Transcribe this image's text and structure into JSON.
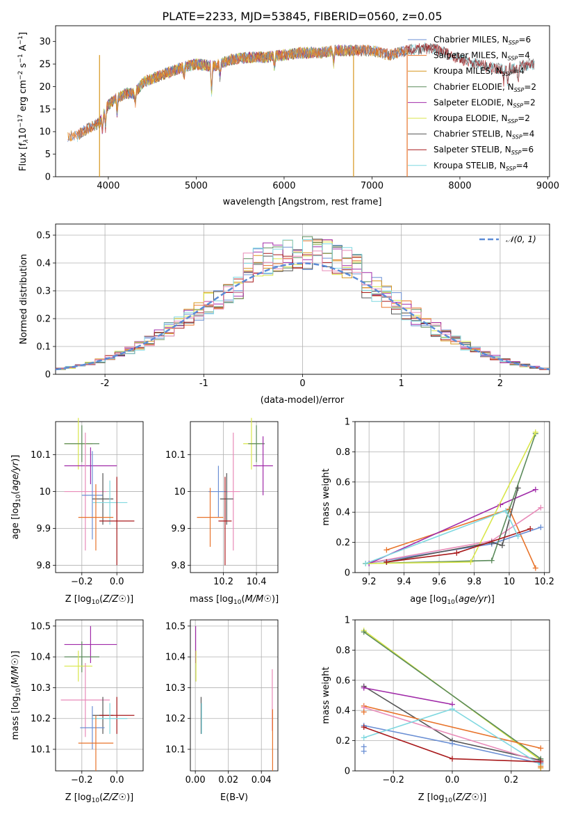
{
  "title": "PLATE=2233, MJD=53845, FIBERID=0560, z=0.05",
  "colors": {
    "Chabrier MILES": "#6a8fd4",
    "Salpeter MILES": "#e8732a",
    "Kroupa MILES": "#d7961c",
    "Chabrier ELODIE": "#5a8a5a",
    "Salpeter ELODIE": "#a02aa8",
    "Kroupa ELODIE": "#d9e64a",
    "Chabrier STELIB": "#555555",
    "Salpeter STELIB": "#a8191b",
    "Kroupa STELIB": "#7fd8e0",
    "extra_pink": "#e88ab8",
    "normal_curve": "#5b8bd6"
  },
  "chart_data": [
    {
      "id": "spectrum",
      "type": "line",
      "xlabel": "wavelength [Angstrom, rest frame]",
      "ylabel_parts": [
        "Flux [f",
        "λ",
        "10",
        "−17",
        " erg cm",
        "−2",
        " s",
        "−1",
        " A",
        "−1",
        "]"
      ],
      "xlim": [
        3400,
        9020
      ],
      "ylim": [
        0,
        33.5
      ],
      "xticks": [
        4000,
        5000,
        6000,
        7000,
        8000,
        9000
      ],
      "yticks": [
        0,
        5,
        10,
        15,
        20,
        25,
        30
      ],
      "grid": false,
      "legend_position": "top-right",
      "legend": [
        {
          "name": "Chabrier MILES",
          "n": "6"
        },
        {
          "name": "Salpeter MILES",
          "n": "4"
        },
        {
          "name": "Kroupa MILES",
          "n": "4"
        },
        {
          "name": "Chabrier ELODIE",
          "n": "2"
        },
        {
          "name": "Salpeter ELODIE",
          "n": "2"
        },
        {
          "name": "Kroupa ELODIE",
          "n": "2"
        },
        {
          "name": "Chabrier STELIB",
          "n": "4"
        },
        {
          "name": "Salpeter STELIB",
          "n": "6"
        },
        {
          "name": "Kroupa STELIB",
          "n": "4"
        }
      ],
      "continuum": [
        [
          3650,
          9
        ],
        [
          3700,
          10
        ],
        [
          3800,
          11
        ],
        [
          3900,
          12
        ],
        [
          3950,
          14
        ],
        [
          4000,
          16
        ],
        [
          4100,
          17.5
        ],
        [
          4200,
          18.5
        ],
        [
          4300,
          18.5
        ],
        [
          4400,
          21
        ],
        [
          4600,
          22.5
        ],
        [
          4800,
          24
        ],
        [
          5000,
          25
        ],
        [
          5200,
          24.5
        ],
        [
          5400,
          26
        ],
        [
          5600,
          26.5
        ],
        [
          5800,
          26.5
        ],
        [
          6000,
          27
        ],
        [
          6200,
          27.5
        ],
        [
          6400,
          27.5
        ],
        [
          6600,
          28
        ],
        [
          6800,
          28
        ],
        [
          7000,
          28
        ],
        [
          7200,
          27
        ],
        [
          7400,
          28
        ],
        [
          7600,
          28.5
        ],
        [
          7800,
          28
        ],
        [
          8000,
          26
        ],
        [
          8200,
          25
        ],
        [
          8400,
          24
        ],
        [
          8600,
          24
        ],
        [
          8800,
          25
        ]
      ],
      "dips": [
        [
          4305,
          16
        ],
        [
          5175,
          18
        ],
        [
          3933,
          10
        ],
        [
          3968,
          11
        ],
        [
          4100,
          14
        ],
        [
          4861,
          22
        ],
        [
          5270,
          22
        ],
        [
          5890,
          24
        ],
        [
          6563,
          25
        ],
        [
          8498,
          21
        ],
        [
          8542,
          20
        ],
        [
          8662,
          21
        ]
      ],
      "spikes": [
        {
          "x": 3900,
          "series": "Kroupa MILES"
        },
        {
          "x": 6790,
          "series": "Kroupa MILES"
        },
        {
          "x": 7400,
          "series": "Salpeter MILES"
        }
      ],
      "ranges": {
        "MILES": [
          3540,
          7410
        ],
        "ELODIE": [
          3900,
          6800
        ],
        "STELIB": [
          3650,
          8850
        ]
      }
    },
    {
      "id": "residuals",
      "type": "histogram",
      "xlabel": "(data-model)/error",
      "ylabel": "Normed distribution",
      "xlim": [
        -2.5,
        2.5
      ],
      "ylim": [
        0,
        0.54
      ],
      "xticks": [
        -2,
        -1,
        0,
        1,
        2
      ],
      "yticks": [
        0,
        0.1,
        0.2,
        0.3,
        0.4,
        0.5
      ],
      "grid": true,
      "bin_width": 0.1,
      "legend_position": "top-right",
      "legend_label": "𝒩(0, 1)",
      "series_colors": [
        "Chabrier MILES",
        "Salpeter MILES",
        "Kroupa MILES",
        "Chabrier ELODIE",
        "Salpeter ELODIE",
        "Kroupa ELODIE",
        "Chabrier STELIB",
        "Salpeter STELIB",
        "Kroupa STELIB",
        "extra_pink"
      ]
    },
    {
      "id": "z-age",
      "type": "errorbar",
      "xlabel": "Z [log10(Z/Z☉)]",
      "ylabel": "age [log10(age/yr)]",
      "xlim": [
        -0.35,
        0.15
      ],
      "ylim": [
        9.78,
        10.19
      ],
      "xticks": [
        -0.2,
        0.0
      ],
      "xtick_labels": [
        "−0.2",
        "0.0"
      ],
      "yticks": [
        9.8,
        9.9,
        10.0,
        10.1
      ],
      "grid": true,
      "points": [
        {
          "c": "Kroupa ELODIE",
          "x": -0.22,
          "xe": 0.08,
          "y": 10.13,
          "ye": 0.07
        },
        {
          "c": "Chabrier ELODIE",
          "x": -0.2,
          "xe": 0.1,
          "y": 10.13,
          "ye": 0.05
        },
        {
          "c": "Salpeter ELODIE",
          "x": -0.15,
          "xe": 0.15,
          "y": 10.07,
          "ye": 0.05
        },
        {
          "c": "extra_pink",
          "x": -0.18,
          "xe": 0.12,
          "y": 10.0,
          "ye": 0.16
        },
        {
          "c": "Chabrier MILES",
          "x": -0.14,
          "xe": 0.06,
          "y": 9.99,
          "ye": 0.12
        },
        {
          "c": "Chabrier STELIB",
          "x": -0.08,
          "xe": 0.06,
          "y": 9.98,
          "ye": 0.07
        },
        {
          "c": "Kroupa STELIB",
          "x": -0.04,
          "xe": 0.1,
          "y": 9.97,
          "ye": 0.06
        },
        {
          "c": "Salpeter MILES",
          "x": -0.12,
          "xe": 0.1,
          "y": 9.93,
          "ye": 0.09
        },
        {
          "c": "Salpeter STELIB",
          "x": 0.0,
          "xe": 0.1,
          "y": 9.92,
          "ye": 0.12
        }
      ]
    },
    {
      "id": "mass-age",
      "type": "errorbar",
      "xlabel": "mass [log10(M/M☉)]",
      "xlim": [
        10.0,
        10.53
      ],
      "ylim": [
        9.78,
        10.19
      ],
      "xticks": [
        10.2,
        10.4
      ],
      "yticks": [
        9.8,
        9.9,
        10.0,
        10.1
      ],
      "grid": true,
      "points": [
        {
          "c": "Kroupa ELODIE",
          "x": 10.37,
          "xe": 0.05,
          "y": 10.13,
          "ye": 0.07
        },
        {
          "c": "Chabrier ELODIE",
          "x": 10.4,
          "xe": 0.05,
          "y": 10.13,
          "ye": 0.05
        },
        {
          "c": "Salpeter ELODIE",
          "x": 10.44,
          "xe": 0.06,
          "y": 10.07,
          "ye": 0.08
        },
        {
          "c": "Chabrier MILES",
          "x": 10.17,
          "xe": 0.06,
          "y": 10.0,
          "ye": 0.07
        },
        {
          "c": "extra_pink",
          "x": 10.26,
          "xe": 0.04,
          "y": 10.0,
          "ye": 0.16
        },
        {
          "c": "Chabrier STELIB",
          "x": 10.22,
          "xe": 0.04,
          "y": 9.98,
          "ye": 0.07
        },
        {
          "c": "Salpeter MILES",
          "x": 10.12,
          "xe": 0.08,
          "y": 9.93,
          "ye": 0.08
        },
        {
          "c": "Salpeter STELIB",
          "x": 10.21,
          "xe": 0.04,
          "y": 9.92,
          "ye": 0.12
        }
      ]
    },
    {
      "id": "age-weight",
      "type": "line",
      "xlabel": "age [log10(age/yr)]",
      "ylabel": "mass weight",
      "xlim": [
        9.12,
        10.23
      ],
      "ylim": [
        0,
        1.0
      ],
      "xticks": [
        9.2,
        9.4,
        9.6,
        9.8,
        10.0,
        10.2
      ],
      "yticks": [
        0,
        0.2,
        0.4,
        0.6,
        0.8,
        1.0
      ],
      "grid": true,
      "lines": [
        {
          "c": "Salpeter MILES",
          "pts": [
            [
              9.3,
              0.15
            ],
            [
              10.0,
              0.42
            ],
            [
              10.15,
              0.03
            ]
          ]
        },
        {
          "c": "Chabrier MILES",
          "pts": [
            [
              9.18,
              0.06
            ],
            [
              9.9,
              0.19
            ],
            [
              10.18,
              0.3
            ]
          ]
        },
        {
          "c": "extra_pink",
          "pts": [
            [
              9.18,
              0.06
            ],
            [
              9.9,
              0.21
            ],
            [
              10.18,
              0.43
            ]
          ]
        },
        {
          "c": "Salpeter ELODIE",
          "pts": [
            [
              9.2,
              0.06
            ],
            [
              9.95,
              0.45
            ],
            [
              10.15,
              0.55
            ]
          ]
        },
        {
          "c": "Chabrier ELODIE",
          "pts": [
            [
              9.18,
              0.06
            ],
            [
              9.9,
              0.08
            ],
            [
              10.15,
              0.92
            ]
          ]
        },
        {
          "c": "Kroupa ELODIE",
          "pts": [
            [
              9.18,
              0.06
            ],
            [
              9.78,
              0.07
            ],
            [
              10.15,
              0.93
            ]
          ]
        },
        {
          "c": "Chabrier STELIB",
          "pts": [
            [
              9.3,
              0.07
            ],
            [
              9.9,
              0.2
            ],
            [
              9.96,
              0.18
            ],
            [
              10.05,
              0.56
            ]
          ]
        },
        {
          "c": "Salpeter STELIB",
          "pts": [
            [
              9.3,
              0.07
            ],
            [
              9.7,
              0.13
            ],
            [
              10.12,
              0.29
            ]
          ]
        },
        {
          "c": "Kroupa STELIB",
          "pts": [
            [
              9.18,
              0.06
            ],
            [
              9.98,
              0.41
            ],
            [
              10.05,
              0.24
            ]
          ]
        }
      ]
    },
    {
      "id": "z-mass",
      "type": "errorbar",
      "xlabel": "Z [log10(Z/Z☉)]",
      "ylabel": "mass [log10(M/M☉)]",
      "xlim": [
        -0.35,
        0.15
      ],
      "ylim": [
        10.03,
        10.52
      ],
      "xticks": [
        -0.2,
        0.0
      ],
      "xtick_labels": [
        "−0.2",
        "0.0"
      ],
      "yticks": [
        10.1,
        10.2,
        10.3,
        10.4,
        10.5
      ],
      "grid": true,
      "points": [
        {
          "c": "Salpeter ELODIE",
          "x": -0.15,
          "xe": 0.15,
          "y": 10.44,
          "ye": 0.06
        },
        {
          "c": "Chabrier ELODIE",
          "x": -0.2,
          "xe": 0.1,
          "y": 10.4,
          "ye": 0.05
        },
        {
          "c": "Kroupa ELODIE",
          "x": -0.22,
          "xe": 0.08,
          "y": 10.37,
          "ye": 0.05
        },
        {
          "c": "extra_pink",
          "x": -0.18,
          "xe": 0.14,
          "y": 10.26,
          "ye": 0.12
        },
        {
          "c": "Chabrier STELIB",
          "x": -0.08,
          "xe": 0.06,
          "y": 10.21,
          "ye": 0.06
        },
        {
          "c": "Salpeter STELIB",
          "x": 0.0,
          "xe": 0.1,
          "y": 10.21,
          "ye": 0.06
        },
        {
          "c": "Kroupa STELIB",
          "x": -0.04,
          "xe": 0.1,
          "y": 10.2,
          "ye": 0.05
        },
        {
          "c": "Chabrier MILES",
          "x": -0.14,
          "xe": 0.07,
          "y": 10.17,
          "ye": 0.07
        },
        {
          "c": "Salpeter MILES",
          "x": -0.12,
          "xe": 0.1,
          "y": 10.12,
          "ye": 0.09
        }
      ]
    },
    {
      "id": "ebv-mass",
      "type": "errorbar",
      "xlabel": "E(B-V)",
      "xlim": [
        -0.003,
        0.05
      ],
      "ylim": [
        10.03,
        10.52
      ],
      "xticks": [
        0.0,
        0.02,
        0.04
      ],
      "xtick_labels": [
        "0.00",
        "0.02",
        "0.04"
      ],
      "yticks": [
        10.1,
        10.2,
        10.3,
        10.4,
        10.5
      ],
      "grid": true,
      "points": [
        {
          "c": "Salpeter ELODIE",
          "x": 0.0002,
          "xe": 0,
          "y": 10.44,
          "ye": 0.06
        },
        {
          "c": "Kroupa ELODIE",
          "x": 0.0004,
          "xe": 0,
          "y": 10.37,
          "ye": 0.05
        },
        {
          "c": "Chabrier STELIB",
          "x": 0.0035,
          "xe": 0,
          "y": 10.21,
          "ye": 0.06
        },
        {
          "c": "Kroupa STELIB",
          "x": 0.0038,
          "xe": 0,
          "y": 10.2,
          "ye": 0.05
        },
        {
          "c": "extra_pink",
          "x": 0.0466,
          "xe": 0,
          "y": 10.26,
          "ye": 0.1
        },
        {
          "c": "Salpeter MILES",
          "x": 0.0468,
          "xe": 0,
          "y": 10.13,
          "ye": 0.1
        }
      ]
    },
    {
      "id": "z-weight",
      "type": "line",
      "xlabel": "Z [log10(Z/Z☉)]",
      "ylabel": "mass weight",
      "xlim": [
        -0.33,
        0.33
      ],
      "ylim": [
        0,
        1.0
      ],
      "xticks": [
        -0.2,
        0.0,
        0.2
      ],
      "xtick_labels": [
        "−0.2",
        "0.0",
        "0.2"
      ],
      "yticks": [
        0,
        0.2,
        0.4,
        0.6,
        0.8,
        1.0
      ],
      "grid": true,
      "lines": [
        {
          "c": "Kroupa ELODIE",
          "pts": [
            [
              -0.3,
              0.93
            ],
            [
              0.3,
              0.07
            ]
          ]
        },
        {
          "c": "Chabrier ELODIE",
          "pts": [
            [
              -0.3,
              0.92
            ],
            [
              0.3,
              0.08
            ]
          ]
        },
        {
          "c": "Chabrier STELIB",
          "pts": [
            [
              -0.3,
              0.56
            ],
            [
              0.0,
              0.2
            ],
            [
              0.3,
              0.07
            ]
          ]
        },
        {
          "c": "Salpeter ELODIE",
          "pts": [
            [
              -0.3,
              0.55
            ],
            [
              0.0,
              0.44
            ]
          ]
        },
        {
          "c": "Salpeter MILES",
          "pts": [
            [
              -0.3,
              0.43
            ],
            [
              0.3,
              0.15
            ]
          ]
        },
        {
          "c": "extra_pink",
          "pts": [
            [
              -0.3,
              0.42
            ],
            [
              0.3,
              0.06
            ]
          ]
        },
        {
          "c": "Chabrier MILES",
          "pts": [
            [
              -0.3,
              0.3
            ],
            [
              0.0,
              0.18
            ],
            [
              0.3,
              0.05
            ]
          ]
        },
        {
          "c": "Kroupa STELIB",
          "pts": [
            [
              -0.3,
              0.22
            ],
            [
              0.0,
              0.41
            ],
            [
              0.3,
              0.04
            ]
          ]
        },
        {
          "c": "Salpeter STELIB",
          "pts": [
            [
              -0.3,
              0.29
            ],
            [
              0.0,
              0.08
            ],
            [
              0.3,
              0.06
            ]
          ]
        }
      ],
      "extra_marks": [
        {
          "c": "Chabrier MILES",
          "pts": [
            [
              -0.3,
              0.13
            ],
            [
              -0.3,
              0.16
            ]
          ]
        },
        {
          "c": "Salpeter MILES",
          "pts": [
            [
              -0.3,
              0.39
            ],
            [
              0.3,
              0.03
            ]
          ]
        },
        {
          "c": "Kroupa MILES",
          "pts": [
            [
              0.3,
              0.02
            ]
          ]
        }
      ]
    }
  ]
}
